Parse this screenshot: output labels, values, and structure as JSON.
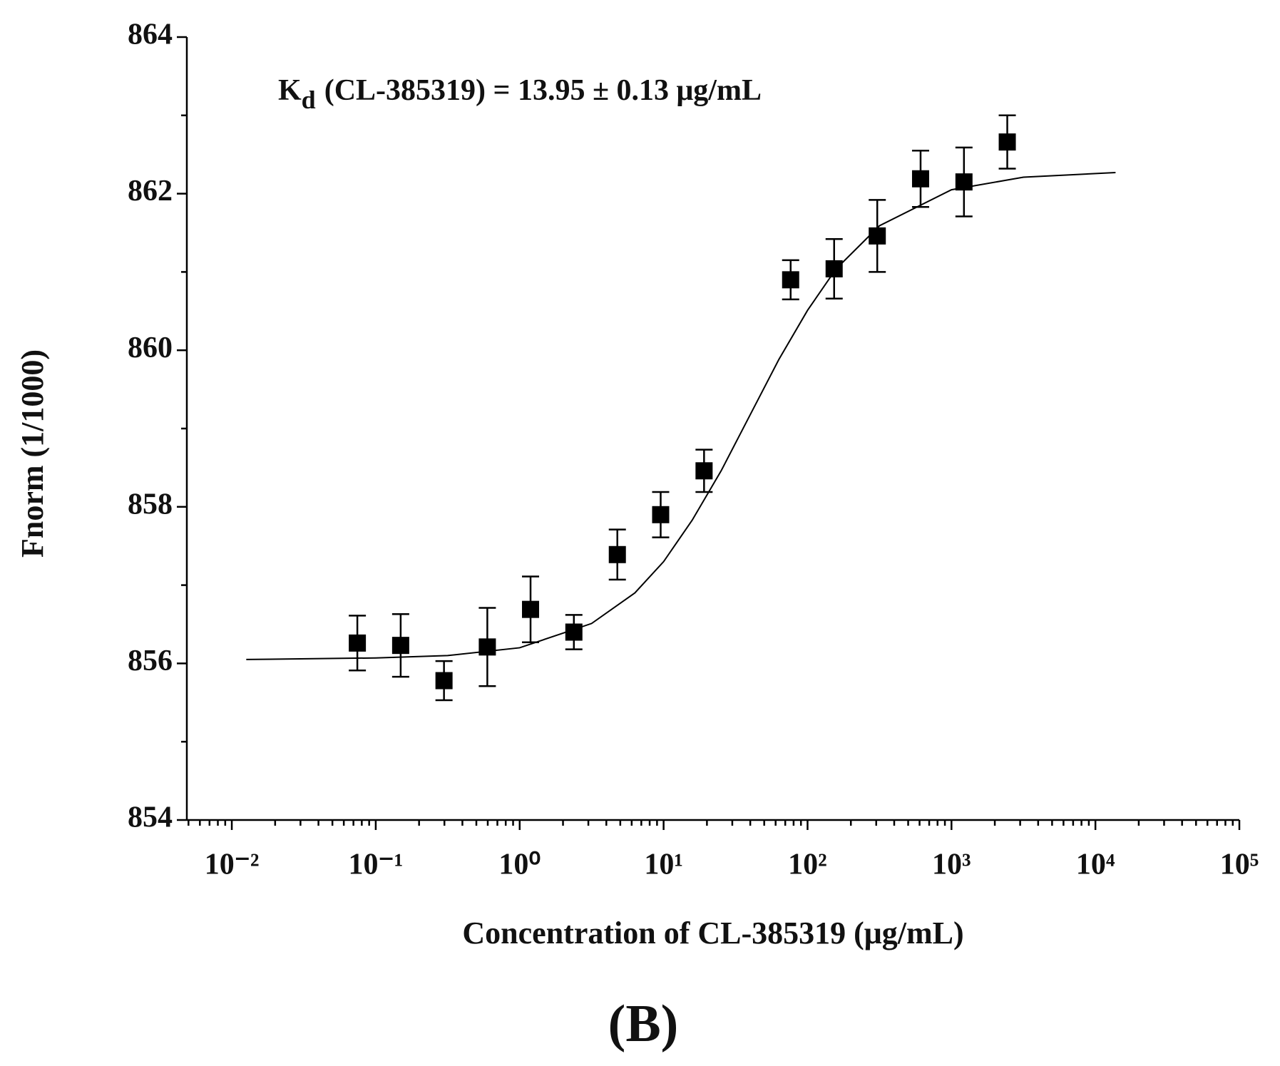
{
  "chart_data": {
    "type": "scatter",
    "annotation": {
      "main": "K",
      "sub": "d",
      "rest": "(CL-385319) = 13.95 ± 0.13 μg/mL"
    },
    "xlabel": "Concentration of  CL-385319 (μg/mL)",
    "ylabel": "Fnorm (1/1000)",
    "panel_label": "(B)",
    "xscale": "log",
    "xlim": [
      0.00487,
      100000
    ],
    "ylim": [
      854,
      864
    ],
    "xticks": [
      {
        "value": 0.01,
        "label": "10⁻²"
      },
      {
        "value": 0.1,
        "label": "10⁻¹"
      },
      {
        "value": 1,
        "label": "10⁰"
      },
      {
        "value": 10,
        "label": "10¹"
      },
      {
        "value": 100,
        "label": "10²"
      },
      {
        "value": 1000,
        "label": "10³"
      },
      {
        "value": 10000,
        "label": "10⁴"
      },
      {
        "value": 100000,
        "label": "10⁵"
      }
    ],
    "yticks": [
      854,
      856,
      858,
      860,
      862,
      864
    ],
    "series": [
      {
        "style": "markers",
        "color": "#000000",
        "x": [
          0.0745,
          0.149,
          0.298,
          0.596,
          1.19,
          2.38,
          4.77,
          9.54,
          19.1,
          76.3,
          153,
          305,
          610,
          1221,
          2441
        ],
        "values": [
          856.26,
          856.23,
          855.78,
          856.21,
          856.69,
          856.4,
          857.39,
          857.9,
          858.46,
          860.9,
          861.04,
          861.46,
          862.19,
          862.15,
          862.66
        ],
        "errors": [
          0.35,
          0.4,
          0.25,
          0.5,
          0.42,
          0.22,
          0.32,
          0.29,
          0.27,
          0.25,
          0.38,
          0.46,
          0.36,
          0.44,
          0.34
        ]
      },
      {
        "style": "line",
        "color": "#000000",
        "x": [
          0.0126,
          0.1,
          0.316,
          1,
          3.16,
          6.31,
          10,
          15.8,
          25.1,
          39.8,
          63.1,
          100,
          158,
          316,
          1000,
          3162,
          13800
        ],
        "values": [
          856.05,
          856.07,
          856.1,
          856.2,
          856.51,
          856.9,
          857.3,
          857.83,
          858.46,
          859.17,
          859.88,
          860.51,
          861.04,
          861.59,
          862.05,
          862.21,
          862.27
        ]
      }
    ]
  }
}
